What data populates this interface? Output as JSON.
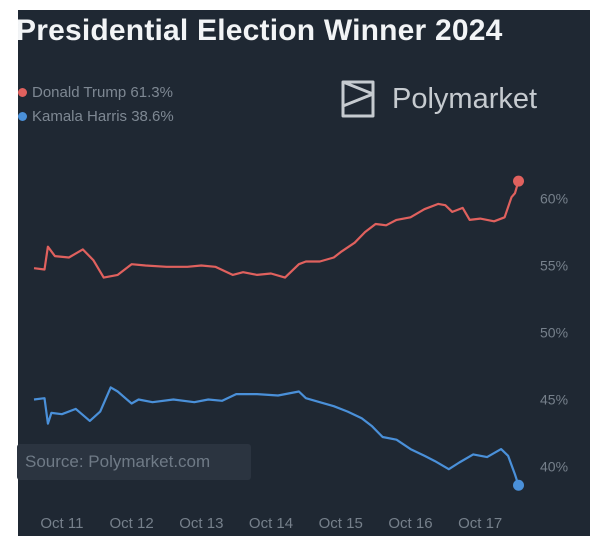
{
  "chart_data": {
    "type": "line",
    "title": "Presidential Election Winner 2024",
    "brand": "Polymarket",
    "source": "Source: Polymarket.com",
    "legend_placement": "top-left",
    "grid": false,
    "x_ticks": [
      "Oct 11",
      "Oct 12",
      "Oct 13",
      "Oct 14",
      "Oct 15",
      "Oct 16",
      "Oct 17"
    ],
    "xlim": [
      10.6,
      17.6
    ],
    "y_ticks": [
      "60%",
      "55%",
      "50%",
      "45%",
      "40%"
    ],
    "y_tick_values": [
      60,
      55,
      50,
      45,
      40
    ],
    "ylim": [
      37.5,
      62.5
    ],
    "series": [
      {
        "name": "Donald Trump",
        "legend_label": "Donald Trump 61.3%",
        "color": "#e0615e",
        "x": [
          10.6,
          10.75,
          10.8,
          10.9,
          11.1,
          11.3,
          11.45,
          11.6,
          11.8,
          12.0,
          12.2,
          12.5,
          12.8,
          13.0,
          13.2,
          13.45,
          13.6,
          13.8,
          14.0,
          14.2,
          14.4,
          14.5,
          14.7,
          14.9,
          15.0,
          15.2,
          15.35,
          15.5,
          15.65,
          15.8,
          16.0,
          16.2,
          16.4,
          16.5,
          16.6,
          16.75,
          16.85,
          17.0,
          17.2,
          17.35,
          17.45,
          17.5,
          17.55
        ],
        "values": [
          54.8,
          54.7,
          56.4,
          55.7,
          55.6,
          56.2,
          55.4,
          54.1,
          54.3,
          55.1,
          55.0,
          54.9,
          54.9,
          55.0,
          54.9,
          54.3,
          54.5,
          54.3,
          54.4,
          54.1,
          55.1,
          55.3,
          55.3,
          55.6,
          56.0,
          56.7,
          57.5,
          58.1,
          58.0,
          58.4,
          58.6,
          59.2,
          59.6,
          59.5,
          59.0,
          59.3,
          58.4,
          58.5,
          58.3,
          58.6,
          60.1,
          60.4,
          61.3
        ]
      },
      {
        "name": "Kamala Harris",
        "legend_label": "Kamala Harris 38.6%",
        "color": "#4a90d9",
        "x": [
          10.6,
          10.75,
          10.8,
          10.85,
          11.0,
          11.2,
          11.4,
          11.55,
          11.7,
          11.8,
          12.0,
          12.1,
          12.3,
          12.6,
          12.9,
          13.1,
          13.3,
          13.5,
          13.8,
          14.1,
          14.4,
          14.5,
          14.7,
          14.9,
          15.1,
          15.3,
          15.45,
          15.6,
          15.8,
          16.0,
          16.2,
          16.35,
          16.55,
          16.7,
          16.9,
          17.1,
          17.3,
          17.4,
          17.5,
          17.55
        ],
        "values": [
          45.0,
          45.1,
          43.2,
          44.0,
          43.9,
          44.3,
          43.4,
          44.1,
          45.9,
          45.6,
          44.7,
          45.0,
          44.8,
          45.0,
          44.8,
          45.0,
          44.9,
          45.4,
          45.4,
          45.3,
          45.6,
          45.1,
          44.8,
          44.5,
          44.1,
          43.6,
          43.0,
          42.2,
          42.0,
          41.3,
          40.8,
          40.4,
          39.8,
          40.3,
          40.9,
          40.7,
          41.3,
          40.8,
          39.4,
          38.6
        ]
      }
    ]
  }
}
